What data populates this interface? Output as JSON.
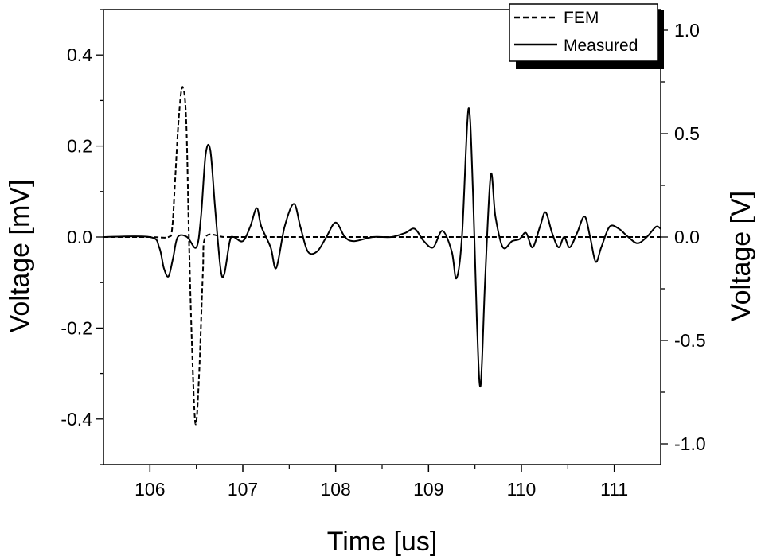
{
  "chart_data": {
    "type": "line",
    "xlabel": "Time [us]",
    "ylabel_left": "Voltage [mV]",
    "ylabel_right": "Voltage [V]",
    "xlim": [
      105.5,
      111.5
    ],
    "ylim_left": [
      -0.5,
      0.5
    ],
    "ylim_right": [
      -1.1,
      1.1
    ],
    "x_ticks": [
      106,
      107,
      108,
      109,
      110,
      111
    ],
    "x_tick_labels": [
      "106",
      "107",
      "108",
      "109",
      "110",
      "111"
    ],
    "y_left_ticks": [
      0.4,
      0.2,
      0.0,
      -0.2,
      -0.4
    ],
    "y_left_tick_labels": [
      "0.4",
      "0.2",
      "0.0",
      "-0.2",
      "-0.4"
    ],
    "y_right_ticks": [
      1.0,
      0.5,
      0.0,
      -0.5,
      -1.0
    ],
    "y_right_tick_labels": [
      "1.0",
      "0.5",
      "0.0",
      "-0.5",
      "-1.0"
    ],
    "legend": {
      "position": "top-right",
      "entries": [
        "FEM",
        "Measured"
      ]
    },
    "series": [
      {
        "name": "FEM",
        "axis": "left",
        "style": "dashed",
        "color": "#000000",
        "points": [
          [
            105.5,
            0.0
          ],
          [
            106.0,
            0.0
          ],
          [
            106.2,
            0.0
          ],
          [
            106.24,
            0.02
          ],
          [
            106.27,
            0.12
          ],
          [
            106.31,
            0.26
          ],
          [
            106.35,
            0.33
          ],
          [
            106.39,
            0.26
          ],
          [
            106.42,
            0.0
          ],
          [
            106.45,
            -0.22
          ],
          [
            106.49,
            -0.41
          ],
          [
            106.53,
            -0.3
          ],
          [
            106.57,
            -0.08
          ],
          [
            106.6,
            0.0
          ],
          [
            106.8,
            0.0
          ],
          [
            107.0,
            0.0
          ],
          [
            108.0,
            0.0
          ],
          [
            109.0,
            0.0
          ],
          [
            110.0,
            0.0
          ],
          [
            111.0,
            0.0
          ],
          [
            111.5,
            0.0
          ]
        ]
      },
      {
        "name": "Measured",
        "axis": "right",
        "style": "solid",
        "color": "#000000",
        "points": [
          [
            105.5,
            0.0
          ],
          [
            106.0,
            0.0
          ],
          [
            106.1,
            -0.05
          ],
          [
            106.15,
            -0.15
          ],
          [
            106.2,
            -0.19
          ],
          [
            106.25,
            -0.1
          ],
          [
            106.3,
            0.0
          ],
          [
            106.4,
            0.0
          ],
          [
            106.5,
            -0.05
          ],
          [
            106.55,
            0.1
          ],
          [
            106.6,
            0.4
          ],
          [
            106.65,
            0.42
          ],
          [
            106.7,
            0.15
          ],
          [
            106.76,
            -0.15
          ],
          [
            106.8,
            -0.18
          ],
          [
            106.86,
            -0.02
          ],
          [
            106.9,
            0.0
          ],
          [
            107.0,
            -0.02
          ],
          [
            107.08,
            0.05
          ],
          [
            107.15,
            0.14
          ],
          [
            107.2,
            0.05
          ],
          [
            107.3,
            -0.05
          ],
          [
            107.36,
            -0.15
          ],
          [
            107.45,
            0.05
          ],
          [
            107.55,
            0.16
          ],
          [
            107.62,
            0.05
          ],
          [
            107.7,
            -0.07
          ],
          [
            107.8,
            -0.07
          ],
          [
            107.9,
            0.0
          ],
          [
            108.0,
            0.07
          ],
          [
            108.1,
            0.0
          ],
          [
            108.2,
            -0.02
          ],
          [
            108.4,
            0.0
          ],
          [
            108.6,
            0.0
          ],
          [
            108.75,
            0.02
          ],
          [
            108.85,
            0.04
          ],
          [
            108.95,
            -0.02
          ],
          [
            109.05,
            -0.05
          ],
          [
            109.15,
            0.03
          ],
          [
            109.25,
            -0.07
          ],
          [
            109.3,
            -0.2
          ],
          [
            109.36,
            0.0
          ],
          [
            109.43,
            0.62
          ],
          [
            109.48,
            0.2
          ],
          [
            109.52,
            -0.4
          ],
          [
            109.56,
            -0.72
          ],
          [
            109.61,
            -0.2
          ],
          [
            109.67,
            0.3
          ],
          [
            109.72,
            0.1
          ],
          [
            109.8,
            -0.05
          ],
          [
            109.9,
            -0.02
          ],
          [
            109.98,
            -0.01
          ],
          [
            110.05,
            0.02
          ],
          [
            110.12,
            -0.05
          ],
          [
            110.2,
            0.05
          ],
          [
            110.26,
            0.12
          ],
          [
            110.33,
            0.02
          ],
          [
            110.4,
            -0.05
          ],
          [
            110.46,
            0.0
          ],
          [
            110.52,
            -0.05
          ],
          [
            110.6,
            0.02
          ],
          [
            110.68,
            0.1
          ],
          [
            110.74,
            0.0
          ],
          [
            110.8,
            -0.12
          ],
          [
            110.86,
            -0.05
          ],
          [
            110.95,
            0.05
          ],
          [
            111.05,
            0.04
          ],
          [
            111.15,
            0.0
          ],
          [
            111.25,
            -0.03
          ],
          [
            111.35,
            0.0
          ],
          [
            111.45,
            0.05
          ],
          [
            111.5,
            0.04
          ]
        ]
      }
    ]
  }
}
